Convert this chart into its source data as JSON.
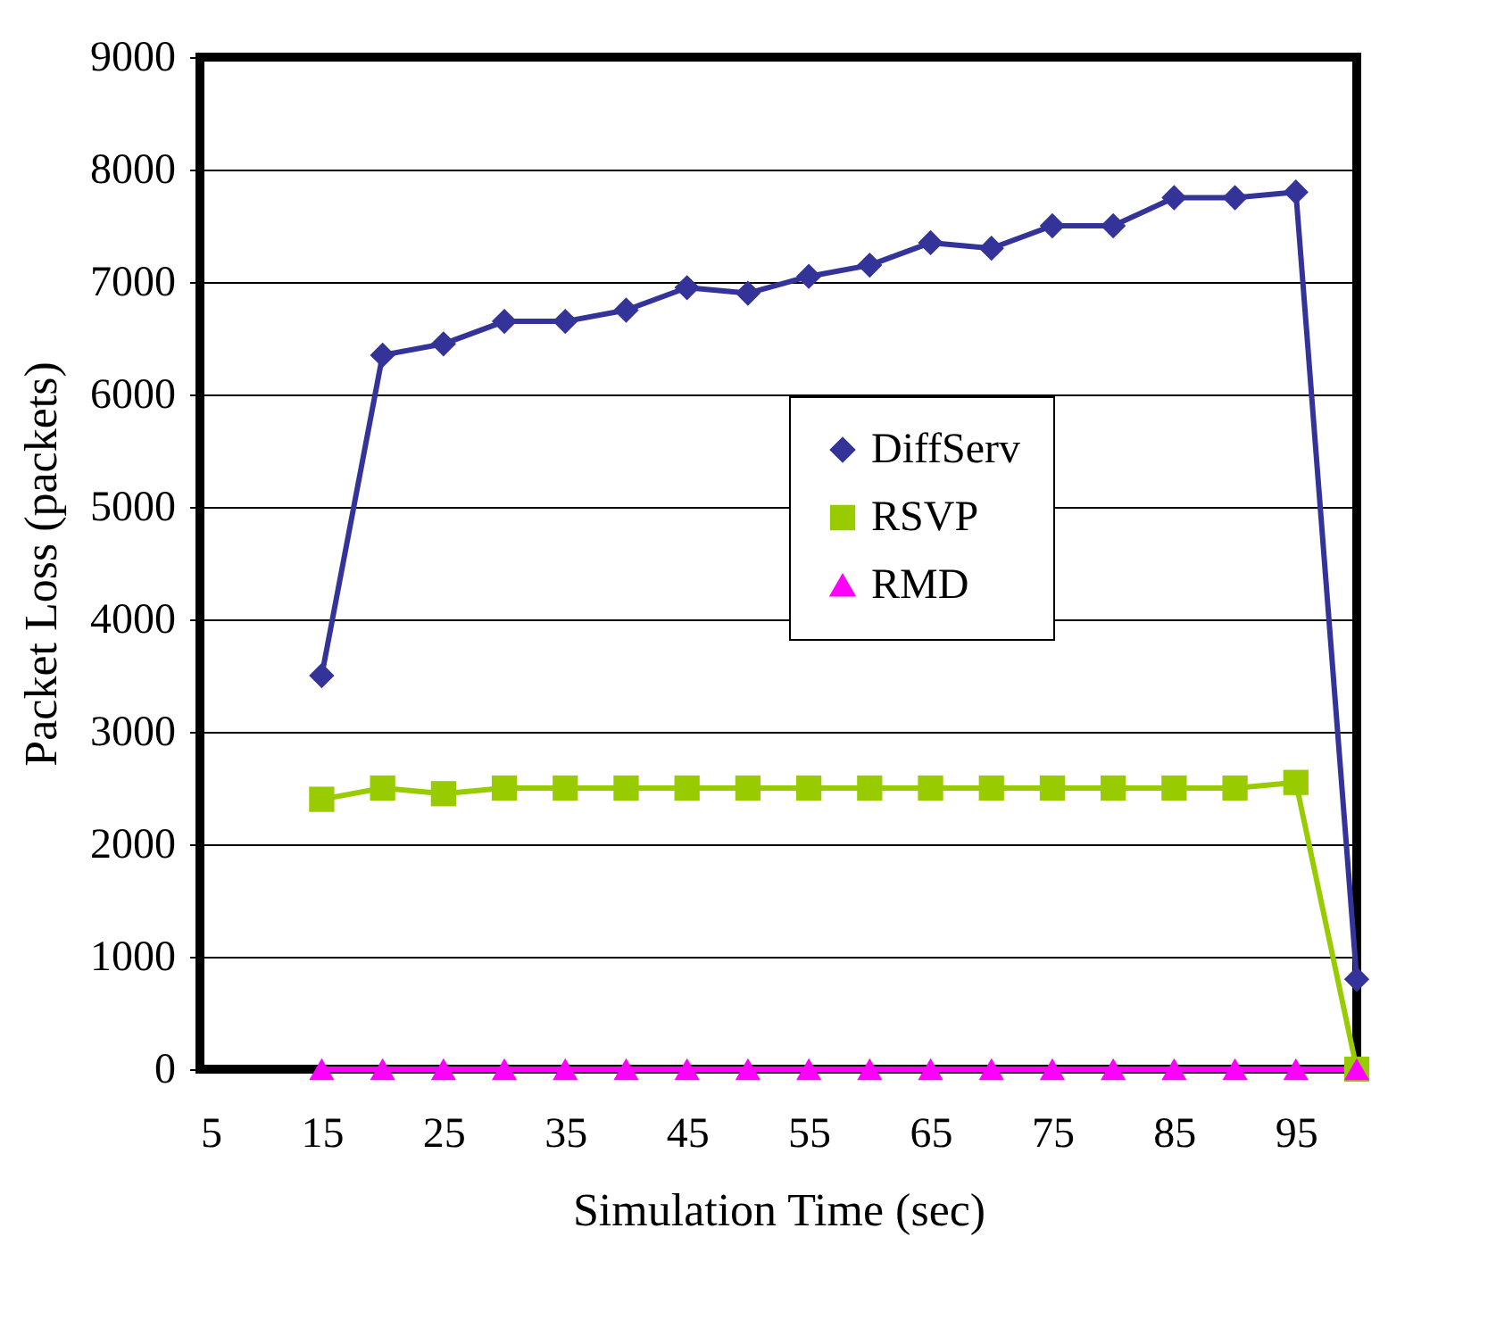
{
  "chart_data": {
    "type": "line",
    "xlabel": "Simulation Time (sec)",
    "ylabel": "Packet Loss (packets)",
    "x": [
      15,
      20,
      25,
      30,
      35,
      40,
      45,
      50,
      55,
      60,
      65,
      70,
      75,
      80,
      85,
      90,
      95,
      100
    ],
    "series": [
      {
        "name": "DiffServ",
        "color": "#333399",
        "marker": "diamond",
        "values": [
          3500,
          6350,
          6450,
          6650,
          6650,
          6750,
          6950,
          6900,
          7050,
          7150,
          7350,
          7300,
          7500,
          7500,
          7750,
          7750,
          7800,
          800
        ]
      },
      {
        "name": "RSVP",
        "color": "#99cc00",
        "marker": "square",
        "values": [
          2400,
          2500,
          2450,
          2500,
          2500,
          2500,
          2500,
          2500,
          2500,
          2500,
          2500,
          2500,
          2500,
          2500,
          2500,
          2500,
          2550,
          0
        ]
      },
      {
        "name": "RMD",
        "color": "#ff00ff",
        "marker": "triangle",
        "values": [
          0,
          0,
          0,
          0,
          0,
          0,
          0,
          0,
          0,
          0,
          0,
          0,
          0,
          0,
          0,
          0,
          0,
          0
        ]
      }
    ],
    "xlim": [
      5,
      100
    ],
    "xticks": [
      5,
      15,
      25,
      35,
      45,
      55,
      65,
      75,
      85,
      95
    ],
    "ylim": [
      0,
      9000
    ],
    "yticks": [
      0,
      1000,
      2000,
      3000,
      4000,
      5000,
      6000,
      7000,
      8000,
      9000
    ],
    "grid": "y",
    "legend": "right",
    "line_style": "solid"
  }
}
